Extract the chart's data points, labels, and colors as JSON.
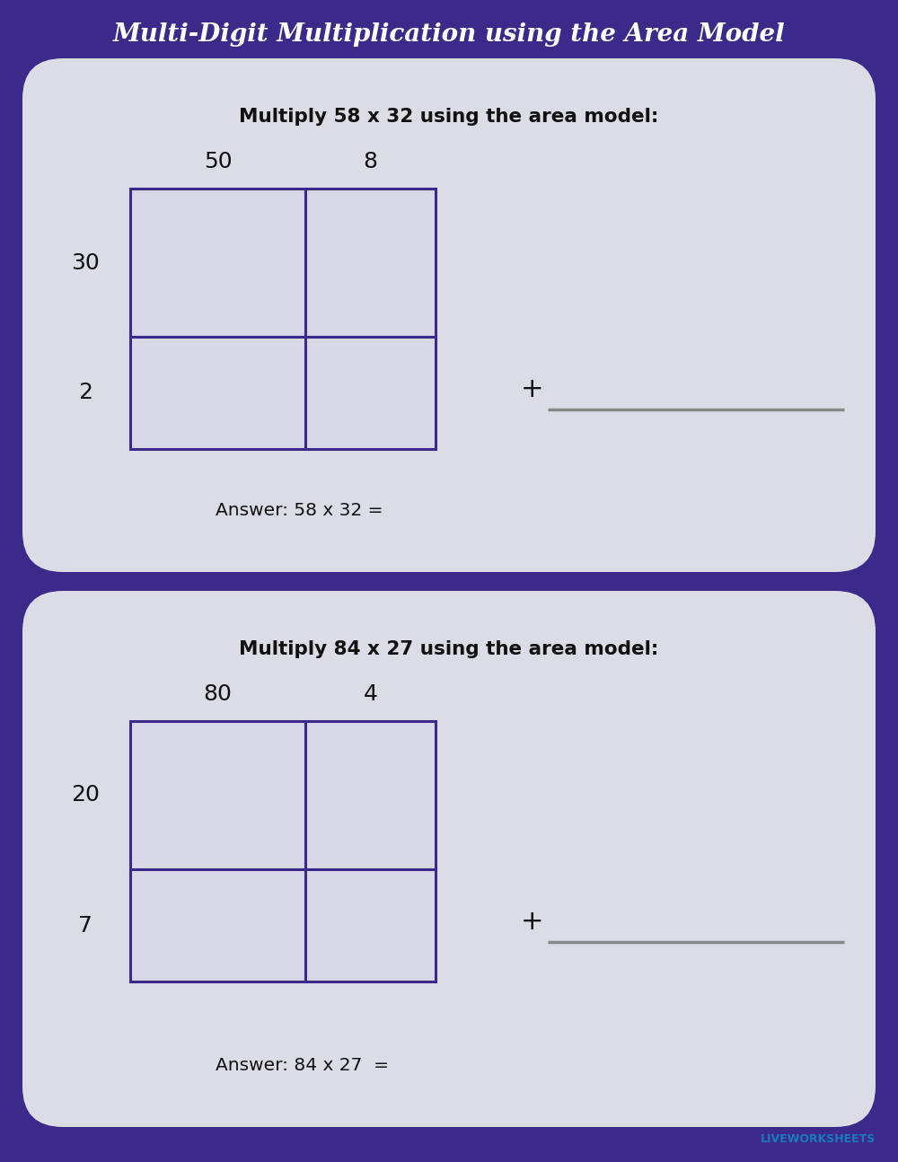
{
  "title": "Multi-Digit Multiplication using the Area Model",
  "title_color": "#ffffff",
  "title_fontsize": 20,
  "bg_color": "#3b2a8a",
  "card_color": "#dcdce6",
  "box_color": "#3b2a8a",
  "box_fill": "#d8d8e8",
  "problems": [
    {
      "prompt": "Multiply 58 x 32 using the area model:",
      "col_labels": [
        "50",
        "8"
      ],
      "row_labels": [
        "30",
        "2"
      ],
      "answer_text": "Answer: 58 x 32 ="
    },
    {
      "prompt": "Multiply 84 x 27 using the area model:",
      "col_labels": [
        "80",
        "4"
      ],
      "row_labels": [
        "20",
        "7"
      ],
      "answer_text": "Answer: 84 x 27  ="
    }
  ]
}
